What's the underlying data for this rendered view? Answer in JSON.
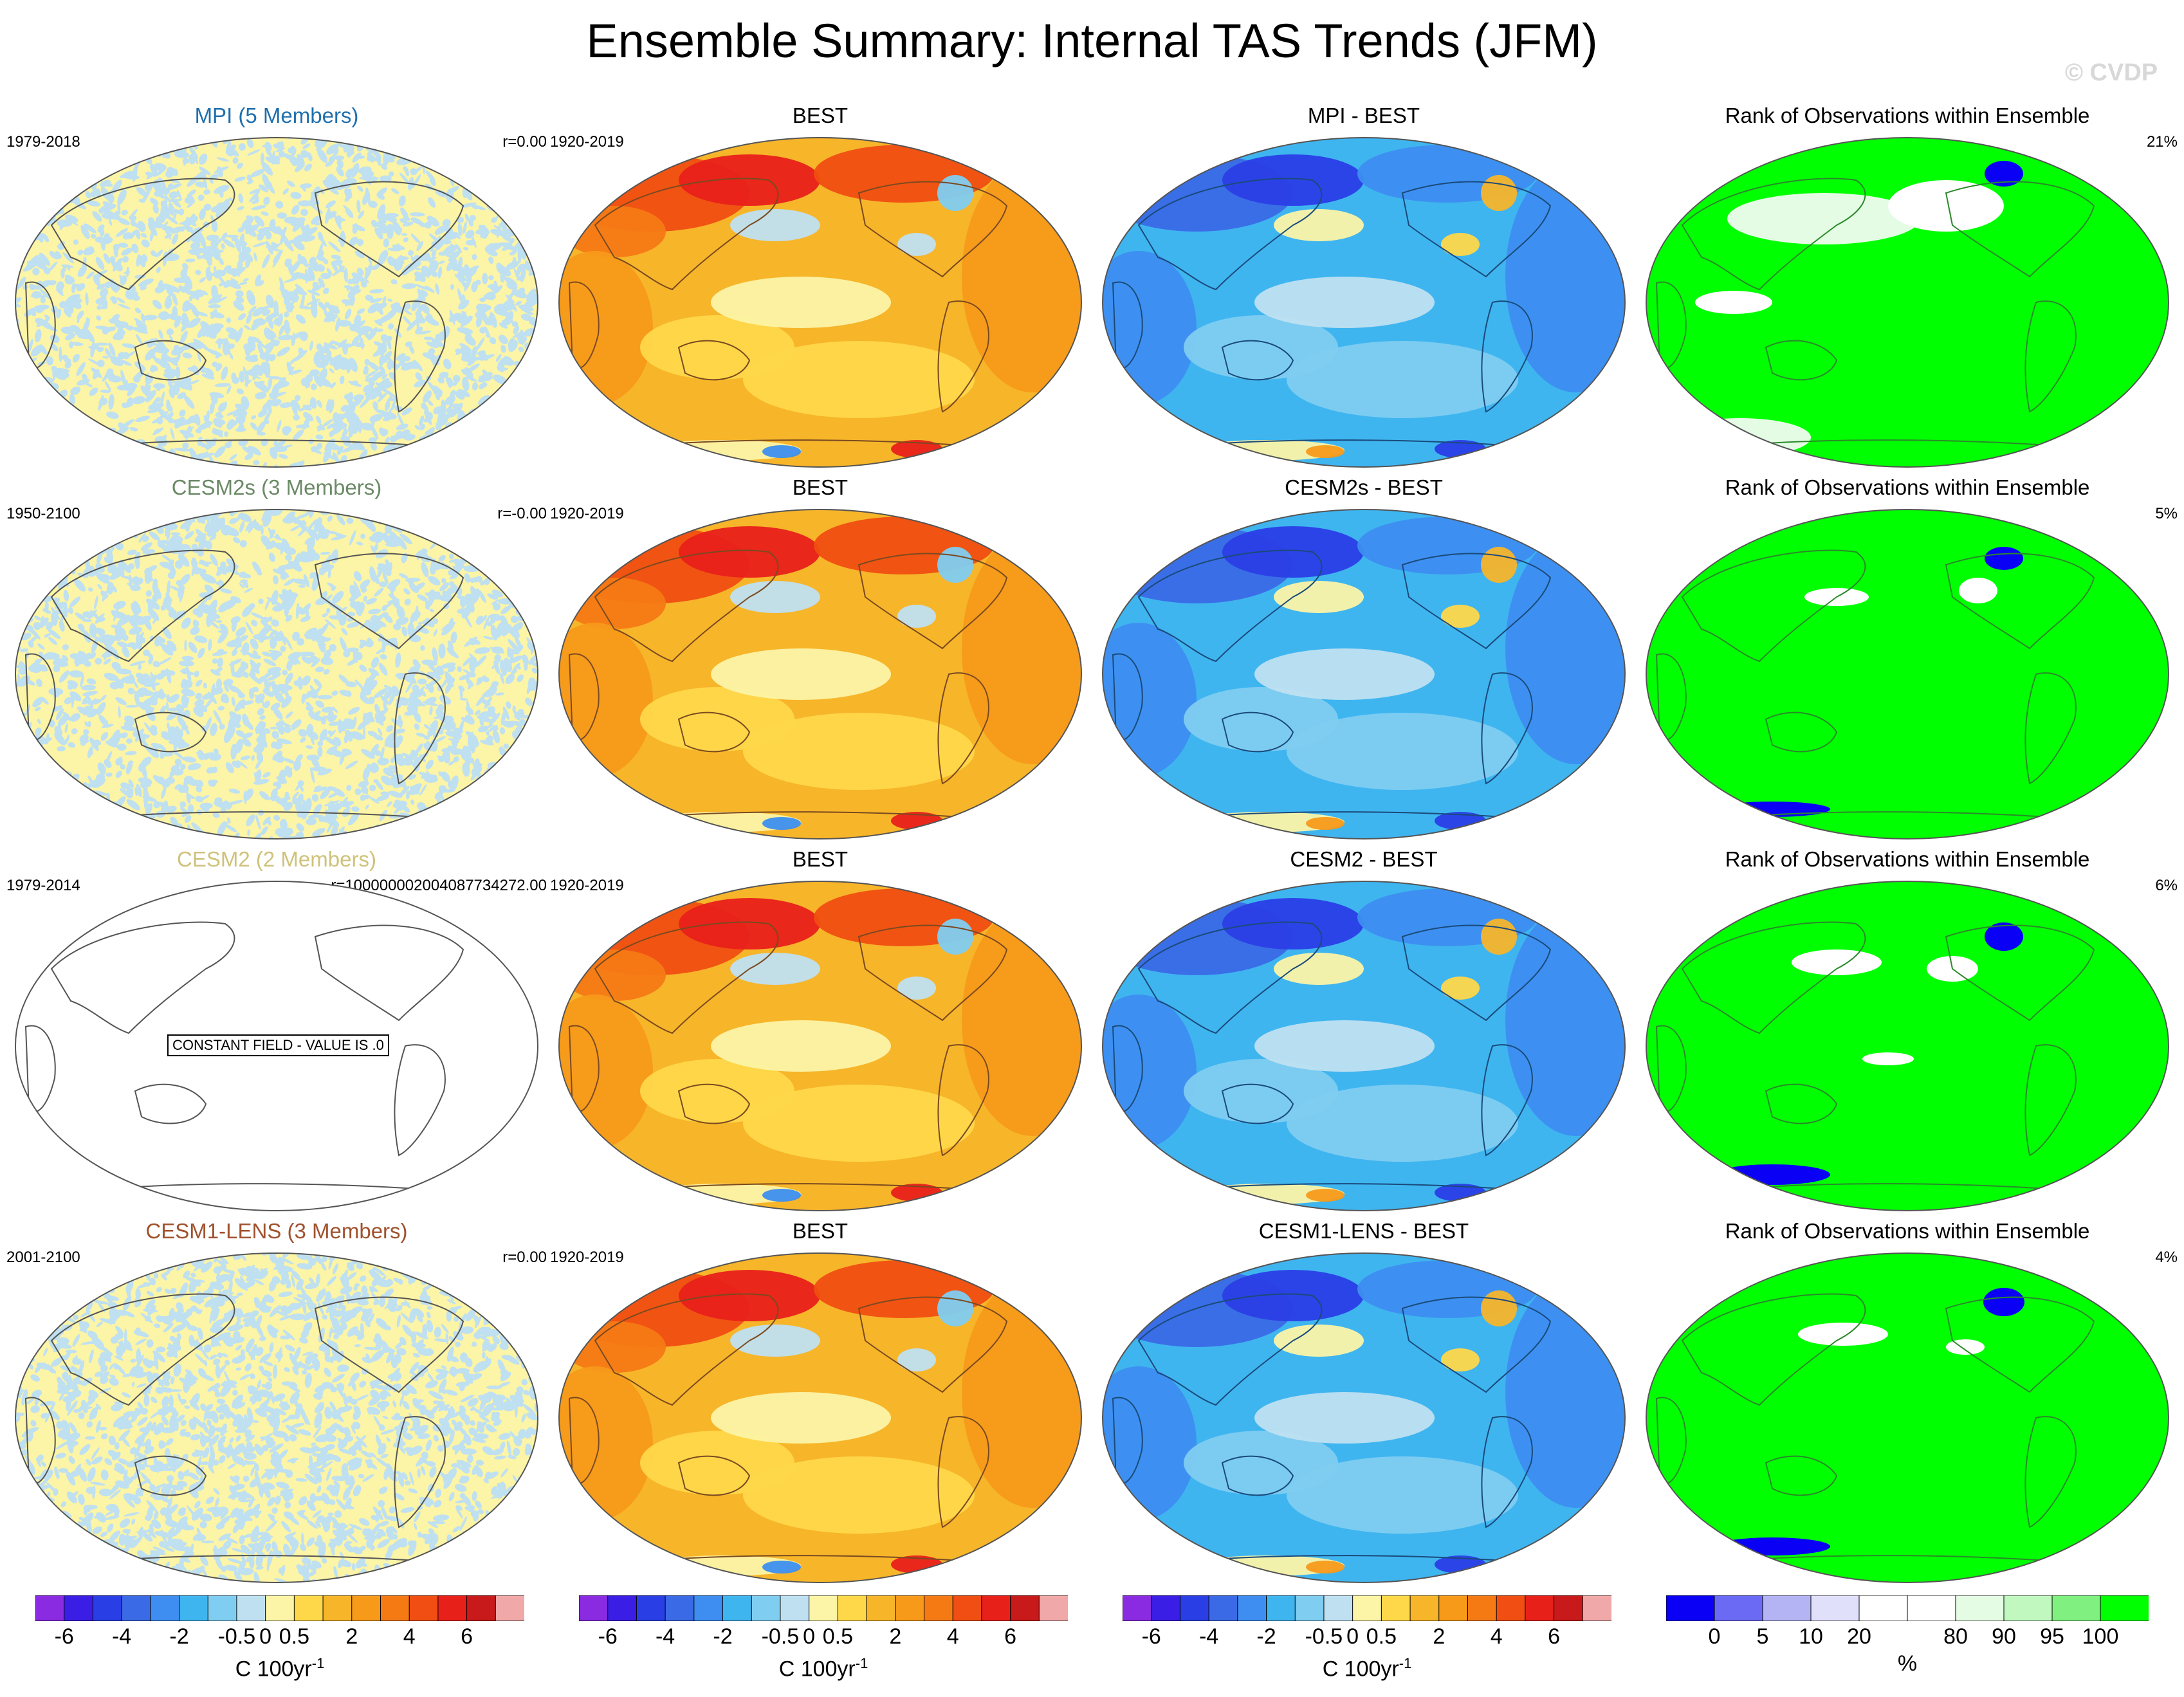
{
  "title": "Ensemble Summary: Internal TAS Trends (JFM)",
  "watermark": "© CVDP",
  "colors": {
    "mpi_title": "#1f6fae",
    "cesm2s_title": "#6b8a66",
    "cesm2_title": "#cfc27a",
    "cesm1_title": "#a0522d",
    "ocean_noise": [
      "#bfe0f0",
      "#fcf4a6"
    ],
    "best_fill": "#f7b52a",
    "diff_fill": "#3fb5f0",
    "rank_fill": "#00ff00"
  },
  "rows": [
    {
      "model": {
        "title": "MPI (5 Members)",
        "period": "1979-2018",
        "stat": "r=0.00",
        "title_color_key": "mpi_title",
        "constant": false
      },
      "obs": {
        "title": "BEST",
        "period": "1920-2019"
      },
      "diff": {
        "title": "MPI - BEST"
      },
      "rank": {
        "title": "Rank of Observations within Ensemble",
        "pct": "21%"
      }
    },
    {
      "model": {
        "title": "CESM2s (3 Members)",
        "period": "1950-2100",
        "stat": "r=-0.00",
        "title_color_key": "cesm2s_title",
        "constant": false
      },
      "obs": {
        "title": "BEST",
        "period": "1920-2019"
      },
      "diff": {
        "title": "CESM2s - BEST"
      },
      "rank": {
        "title": "Rank of Observations within Ensemble",
        "pct": "5%"
      }
    },
    {
      "model": {
        "title": "CESM2 (2 Members)",
        "period": "1979-2014",
        "stat": "r=100000002004087734272.00",
        "title_color_key": "cesm2_title",
        "constant": true,
        "constant_text": "CONSTANT FIELD - VALUE IS .0"
      },
      "obs": {
        "title": "BEST",
        "period": "1920-2019"
      },
      "diff": {
        "title": "CESM2 - BEST"
      },
      "rank": {
        "title": "Rank of Observations within Ensemble",
        "pct": "6%"
      }
    },
    {
      "model": {
        "title": "CESM1-LENS (3 Members)",
        "period": "2001-2100",
        "stat": "r=0.00",
        "title_color_key": "cesm1_title",
        "constant": false
      },
      "obs": {
        "title": "BEST",
        "period": "1920-2019"
      },
      "diff": {
        "title": "CESM1-LENS - BEST"
      },
      "rank": {
        "title": "Rank of Observations within Ensemble",
        "pct": "4%"
      }
    }
  ],
  "chart_data": [
    {
      "type": "heatmap",
      "name": "trend colorbar",
      "colors": [
        "#8a2be2",
        "#3a1ee6",
        "#2a3ee6",
        "#3a6ae6",
        "#3d8ef0",
        "#3fb5f0",
        "#7fcdf0",
        "#bfe0f0",
        "#fcf4a6",
        "#ffd84a",
        "#f7b52a",
        "#f79a1a",
        "#f57a14",
        "#f04e12",
        "#e8201a",
        "#c81a1a",
        "#f0a8a8"
      ],
      "tick_labels": [
        "-6",
        "-4",
        "-2",
        "-0.5",
        "0",
        "0.5",
        "2",
        "4",
        "6"
      ],
      "tick_positions": [
        1,
        3,
        5,
        7,
        8,
        9,
        11,
        13,
        15
      ],
      "unit": "C 100yr",
      "unit_sup": "-1"
    },
    {
      "type": "heatmap",
      "name": "rank colorbar",
      "colors": [
        "#0a00f5",
        "#6a6af5",
        "#b4b4f5",
        "#e0e0fb",
        "#ffffff",
        "#ffffff",
        "#e4fce4",
        "#c0f8c0",
        "#80f080",
        "#00ff00"
      ],
      "tick_labels": [
        "0",
        "5",
        "10",
        "20",
        "80",
        "90",
        "95",
        "100"
      ],
      "tick_positions": [
        1,
        2,
        3,
        4,
        6,
        7,
        8,
        9
      ],
      "unit": "%"
    }
  ]
}
